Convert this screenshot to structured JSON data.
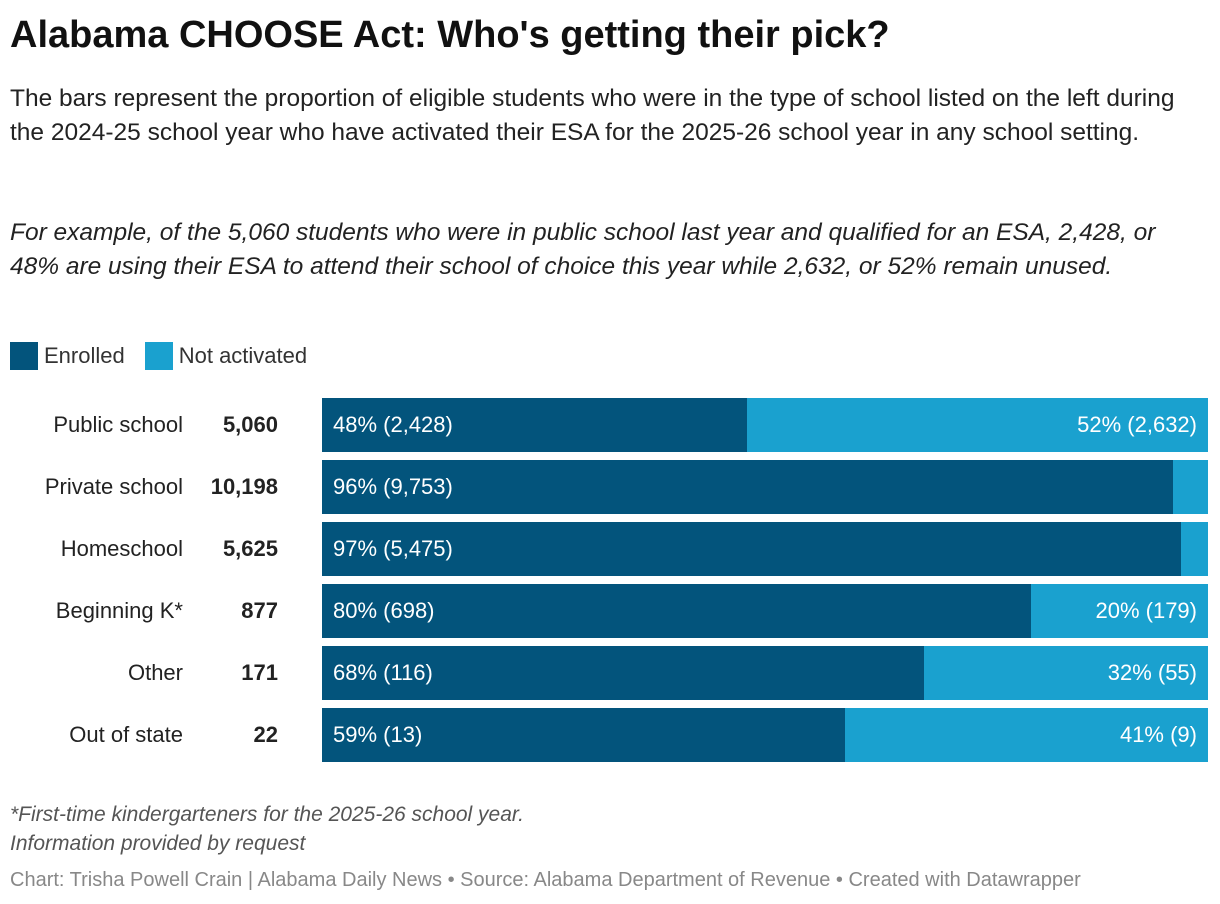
{
  "header": {
    "title": "Alabama CHOOSE Act: Who's getting their pick?",
    "description": "The bars represent the proportion of eligible students who were in the type of school listed on the left during the 2024-25 school year who have activated their ESA for the 2025-26 school year in any school setting.",
    "example": "For example, of the 5,060 students who were in public school last year and qualified for an ESA, 2,428, or 48% are using their ESA to attend their school of choice this year while 2,632, or 52% remain unused."
  },
  "colors": {
    "enrolled": "#03547c",
    "not_activated": "#1aa1cf"
  },
  "chart_data": {
    "type": "bar",
    "orientation": "horizontal",
    "stacked": true,
    "normalized": true,
    "legend": "top-left",
    "categories": [
      "Public school",
      "Private school",
      "Homeschool",
      "Beginning K*",
      "Other",
      "Out of state"
    ],
    "totals": [
      "5,060",
      "10,198",
      "5,625",
      "877",
      "171",
      "22"
    ],
    "series": [
      {
        "name": "Enrolled",
        "values": [
          48,
          96,
          97,
          80,
          68,
          59
        ],
        "labels": [
          "48% (2,428)",
          "96% (9,753)",
          "97% (5,475)",
          "80% (698)",
          "68% (116)",
          "59% (13)"
        ]
      },
      {
        "name": "Not activated",
        "values": [
          52,
          4,
          3,
          20,
          32,
          41
        ],
        "labels": [
          "52% (2,632)",
          "",
          "",
          "20% (179)",
          "32% (55)",
          "41% (9)"
        ]
      }
    ]
  },
  "notes": {
    "footnote": "*First-time kindergarteners for the 2025-26 school year.",
    "info": "Information provided by request"
  },
  "credit": "Chart: Trisha Powell Crain | Alabama Daily News • Source: Alabama Department of Revenue • Created with Datawrapper"
}
